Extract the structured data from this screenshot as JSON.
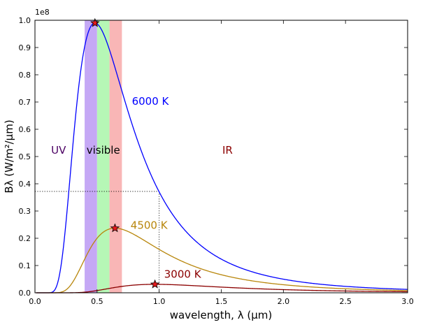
{
  "chart_data": {
    "type": "line",
    "title": "",
    "xlabel": "wavelength, λ (μm)",
    "ylabel": "Bλ (W/m²/μm)",
    "y_offset_text": "1e8",
    "xlim": [
      0.0,
      3.0
    ],
    "ylim": [
      0.0,
      1.0
    ],
    "y_scale_factor": 100000000,
    "xticks": [
      "0.0",
      "0.5",
      "1.0",
      "1.5",
      "2.0",
      "2.5",
      "3.0"
    ],
    "yticks": [
      "0.0",
      "0.1",
      "0.2",
      "0.3",
      "0.4",
      "0.5",
      "0.6",
      "0.7",
      "0.8",
      "0.9",
      "1.0"
    ],
    "grid": false,
    "bands": [
      {
        "name": "violet",
        "x": [
          0.4,
          0.5
        ],
        "color": "#c5a8f5"
      },
      {
        "name": "green",
        "x": [
          0.5,
          0.6
        ],
        "color": "#b6f7b6"
      },
      {
        "name": "red",
        "x": [
          0.6,
          0.7
        ],
        "color": "#f9b6b6"
      }
    ],
    "region_labels": [
      {
        "text": "UV",
        "x": 0.19,
        "y": 0.51,
        "color": "#4b0063"
      },
      {
        "text": "visible",
        "x": 0.55,
        "y": 0.51,
        "color": "#000000"
      },
      {
        "text": "IR",
        "x": 1.55,
        "y": 0.51,
        "color": "#8b0000"
      }
    ],
    "series": [
      {
        "name": "6000 K",
        "temperature_K": 6000,
        "color": "#0000ff",
        "peak": [
          0.483,
          0.99
        ],
        "label_pos": [
          0.78,
          0.69
        ]
      },
      {
        "name": "4500 K",
        "temperature_K": 4500,
        "color": "#b8860b",
        "peak": [
          0.644,
          0.237
        ],
        "label_pos": [
          0.77,
          0.235
        ]
      },
      {
        "name": "3000 K",
        "temperature_K": 3000,
        "color": "#8b0000",
        "peak": [
          0.966,
          0.031
        ],
        "label_pos": [
          1.04,
          0.055
        ]
      }
    ],
    "reference_lines": {
      "x": 1.0,
      "y": 0.372
    }
  }
}
